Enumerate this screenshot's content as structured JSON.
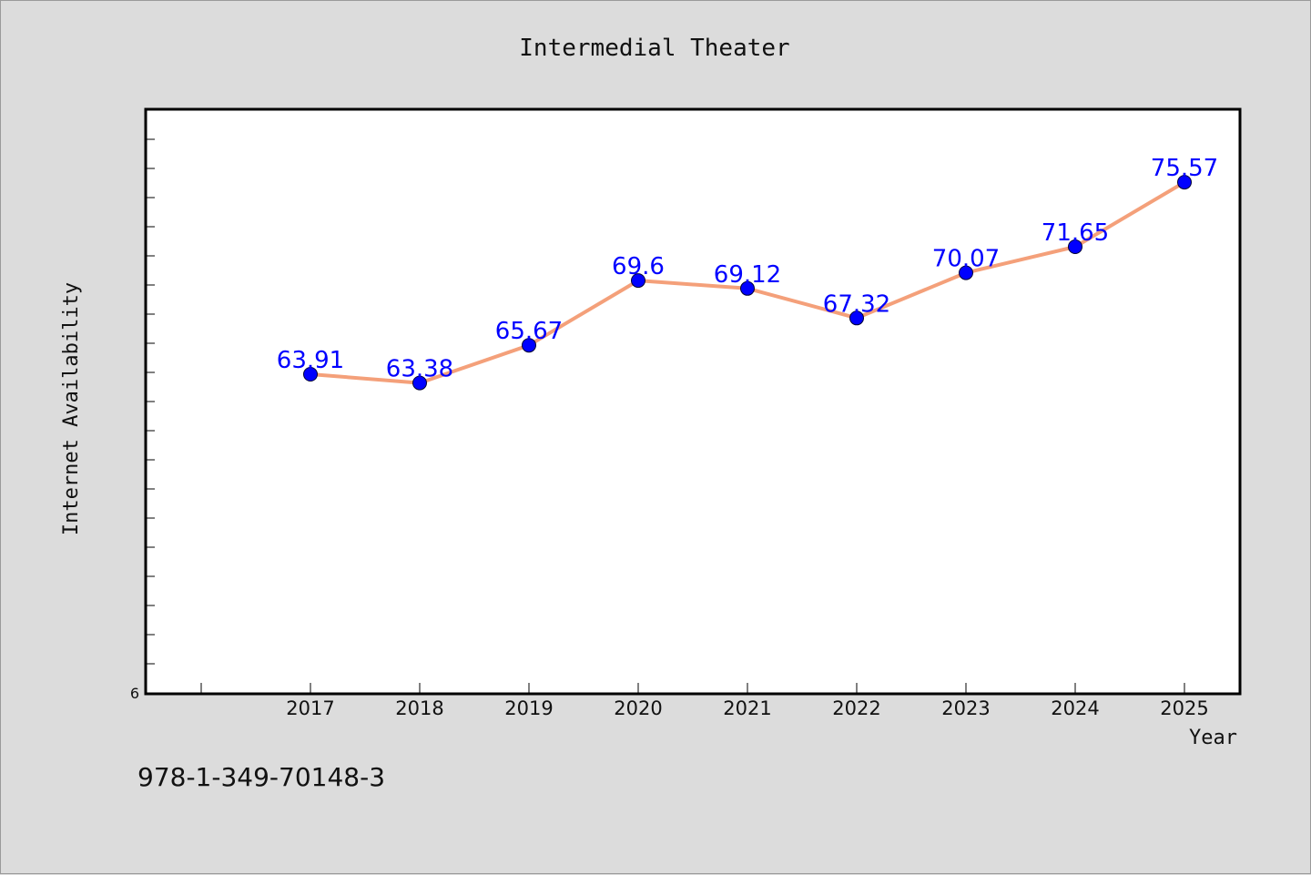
{
  "chart_data": {
    "type": "line",
    "title": "Intermedial Theater",
    "xlabel": "Year",
    "ylabel": "Internet Availability",
    "categories": [
      "2017",
      "2018",
      "2019",
      "2020",
      "2021",
      "2022",
      "2023",
      "2024",
      "2025"
    ],
    "series": [
      {
        "values": [
          63.91,
          63.38,
          65.67,
          69.6,
          69.12,
          67.32,
          70.07,
          71.65,
          75.57
        ],
        "labels": [
          "63.91",
          "63.38",
          "65.67",
          "69.6",
          "69.12",
          "67.32",
          "70.07",
          "71.65",
          "75.57"
        ]
      }
    ],
    "ylim": [
      44.5,
      80.0
    ],
    "yticks_shown": [
      "6"
    ],
    "grid": false,
    "line_color": "#f4a07a",
    "marker_color": "#0000ff",
    "label_color": "#0000ff"
  },
  "footer": {
    "isbn": "978-1-349-70148-3"
  }
}
